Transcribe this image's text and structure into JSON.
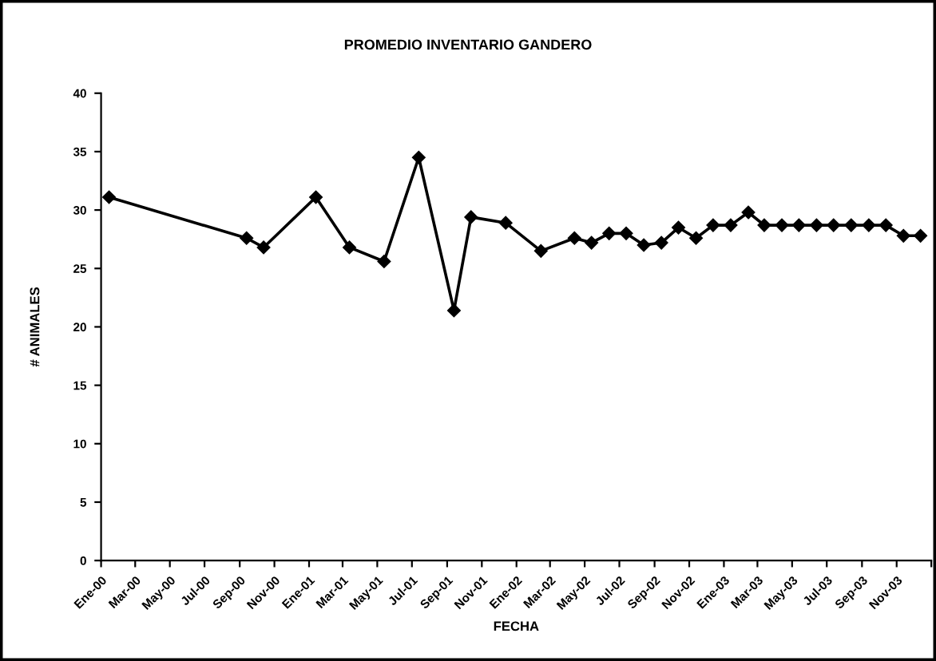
{
  "chart_data": {
    "type": "line",
    "title": "PROMEDIO INVENTARIO GANDERO",
    "xlabel": "FECHA",
    "ylabel": "# ANIMALES",
    "x": [
      "2000-01-15",
      "2000-09-13",
      "2000-10-13",
      "2001-01-13",
      "2001-03-13",
      "2001-05-13",
      "2001-07-13",
      "2001-09-13",
      "2001-10-13",
      "2001-12-13",
      "2002-02-13",
      "2002-04-13",
      "2002-05-13",
      "2002-06-13",
      "2002-07-13",
      "2002-08-13",
      "2002-09-13",
      "2002-10-13",
      "2002-11-13",
      "2002-12-13",
      "2003-01-13",
      "2003-02-13",
      "2003-03-13",
      "2003-04-13",
      "2003-05-13",
      "2003-06-13",
      "2003-07-13",
      "2003-08-13",
      "2003-09-13",
      "2003-10-13",
      "2003-11-13",
      "2003-12-13"
    ],
    "series": [
      {
        "color": "#000000",
        "values": [
          31.1,
          27.6,
          26.8,
          31.1,
          26.8,
          25.6,
          34.5,
          21.4,
          29.4,
          28.9,
          26.5,
          27.6,
          27.2,
          28.0,
          28.0,
          27.0,
          27.2,
          28.5,
          27.6,
          28.7,
          28.7,
          29.8,
          28.7,
          28.7,
          28.7,
          28.7,
          28.7,
          28.7,
          28.7,
          28.7,
          27.8,
          27.8
        ]
      }
    ],
    "xlim": [
      "2000-01",
      "2004-01"
    ],
    "xticks": [
      {
        "value": "2000-01",
        "label": "Ene-00"
      },
      {
        "value": "2000-03",
        "label": "Mar-00"
      },
      {
        "value": "2000-05",
        "label": "May-00"
      },
      {
        "value": "2000-07",
        "label": "Jul-00"
      },
      {
        "value": "2000-09",
        "label": "Sep-00"
      },
      {
        "value": "2000-11",
        "label": "Nov-00"
      },
      {
        "value": "2001-01",
        "label": "Ene-01"
      },
      {
        "value": "2001-03",
        "label": "Mar-01"
      },
      {
        "value": "2001-05",
        "label": "May-01"
      },
      {
        "value": "2001-07",
        "label": "Jul-01"
      },
      {
        "value": "2001-09",
        "label": "Sep-01"
      },
      {
        "value": "2001-11",
        "label": "Nov-01"
      },
      {
        "value": "2002-01",
        "label": "Ene-02"
      },
      {
        "value": "2002-03",
        "label": "Mar-02"
      },
      {
        "value": "2002-05",
        "label": "May-02"
      },
      {
        "value": "2002-07",
        "label": "Jul-02"
      },
      {
        "value": "2002-09",
        "label": "Sep-02"
      },
      {
        "value": "2002-11",
        "label": "Nov-02"
      },
      {
        "value": "2003-01",
        "label": "Ene-03"
      },
      {
        "value": "2003-03",
        "label": "Mar-03"
      },
      {
        "value": "2003-05",
        "label": "May-03"
      },
      {
        "value": "2003-07",
        "label": "Jul-03"
      },
      {
        "value": "2003-09",
        "label": "Sep-03"
      },
      {
        "value": "2003-11",
        "label": "Nov-03"
      },
      {
        "value": "2004-01",
        "label": null
      }
    ],
    "ylim": [
      0,
      40
    ],
    "yticks": [
      0,
      5,
      10,
      15,
      20,
      25,
      30,
      35,
      40
    ],
    "grid": false,
    "legend": false,
    "marker": "diamond",
    "line_style": "solid"
  }
}
